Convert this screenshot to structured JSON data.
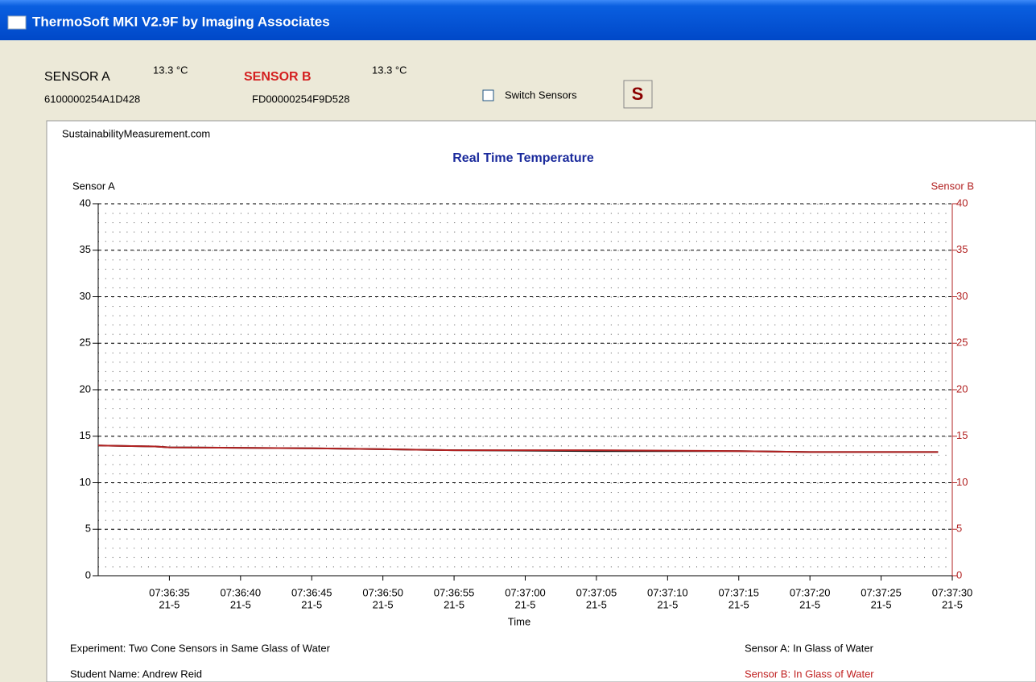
{
  "window": {
    "title": "ThermoSoft  MKI V2.9F by Imaging Associates"
  },
  "sensors": [
    {
      "name": "SENSOR A",
      "reading": "13.3 °C",
      "id": "6100000254A1D428"
    },
    {
      "name": "SENSOR B",
      "reading": "13.3 °C",
      "id": "FD00000254F9D528"
    }
  ],
  "controls": {
    "switch_label": "Switch Sensors",
    "button": "S"
  },
  "chart_data": {
    "type": "line",
    "source": "SustainabilityMeasurement.com",
    "title": "Real Time Temperature",
    "x_label": "Time",
    "x": [
      "07:36:30",
      "07:36:34",
      "07:36:35",
      "07:36:45",
      "07:36:50",
      "07:36:55",
      "07:37:05",
      "07:37:15",
      "07:37:20",
      "07:37:29"
    ],
    "series": [
      {
        "name": "Sensor A",
        "color": "#000000",
        "values": [
          14.0,
          13.9,
          13.8,
          13.7,
          13.6,
          13.5,
          13.4,
          13.4,
          13.3,
          13.3
        ]
      },
      {
        "name": "Sensor B",
        "color": "#b22222",
        "axis": "y2",
        "values": [
          14.0,
          13.9,
          13.8,
          13.7,
          13.6,
          13.5,
          13.5,
          13.4,
          13.3,
          13.3
        ]
      }
    ],
    "xlim": [
      "07:36:30",
      "07:37:30"
    ],
    "xticks": [
      "07:36:35",
      "07:36:40",
      "07:36:45",
      "07:36:50",
      "07:36:55",
      "07:37:00",
      "07:37:05",
      "07:37:10",
      "07:37:15",
      "07:37:20",
      "07:37:25",
      "07:37:30"
    ],
    "xtick_dates": [
      "21-5",
      "21-5",
      "21-5",
      "21-5",
      "21-5",
      "21-5",
      "21-5",
      "21-5",
      "21-5",
      "21-5",
      "21-5",
      "21-5"
    ],
    "ylim": [
      0,
      40
    ],
    "yticks": [
      0,
      5,
      10,
      15,
      20,
      25,
      30,
      35,
      40
    ],
    "y2lim": [
      0,
      40
    ],
    "y2ticks": [
      0,
      5,
      10,
      15,
      20,
      25,
      30,
      35,
      40
    ],
    "grid": true
  },
  "footer": {
    "experiment": "Experiment: Two Cone Sensors in Same Glass of Water",
    "student": "Student Name: Andrew Reid",
    "sensor_a_note": "Sensor A: In Glass of Water",
    "sensor_b_note": "Sensor B: In Glass of Water"
  }
}
